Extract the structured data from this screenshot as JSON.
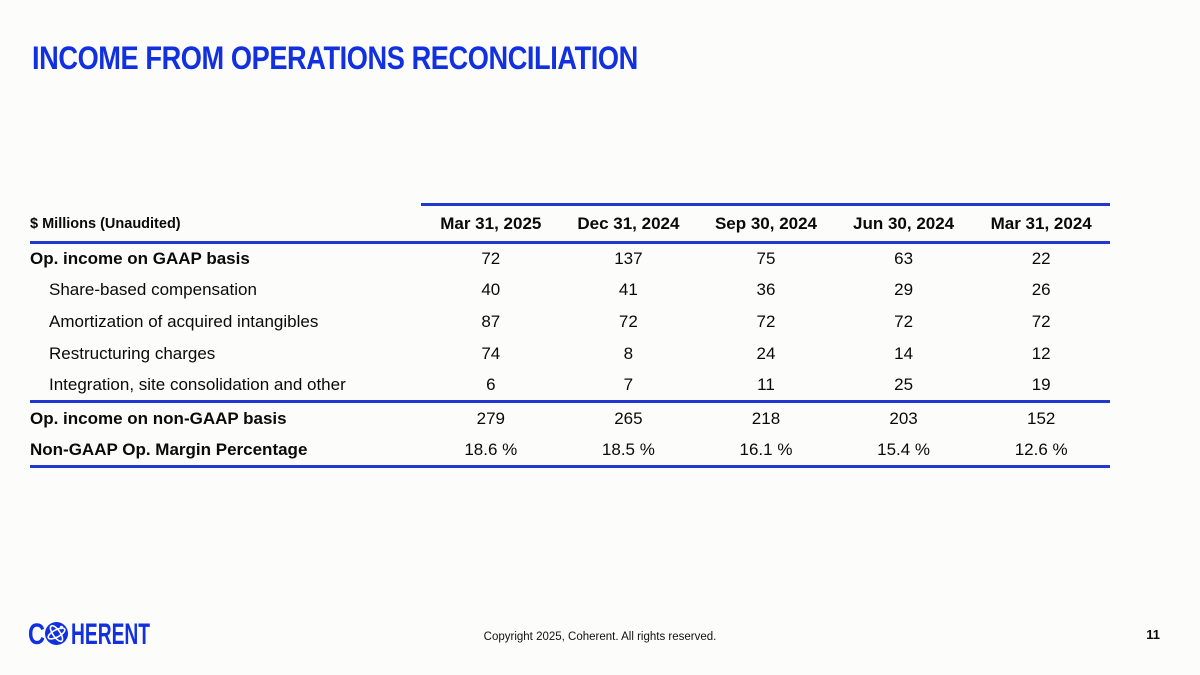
{
  "slide": {
    "title": "INCOME FROM OPERATIONS RECONCILIATION",
    "page_number": "11",
    "footer_copyright": "Copyright 2025, Coherent. All rights reserved.",
    "logo": {
      "text_before_icon": "C",
      "text_after_icon": "HERENT",
      "icon": "globe-orbit-icon"
    }
  },
  "colors": {
    "accent_blue": "#1130e0",
    "rule_blue": "#2138cf",
    "text": "#0a0a0a",
    "background": "#fcfcfa"
  },
  "table": {
    "unit_label": "$ Millions (Unaudited)",
    "columns": [
      "Mar 31, 2025",
      "Dec 31, 2024",
      "Sep 30, 2024",
      "Jun 30, 2024",
      "Mar 31, 2024"
    ],
    "rows": [
      {
        "label": "Op. income on GAAP basis",
        "bold": true,
        "indent": false,
        "values": [
          "72",
          "137",
          "75",
          "63",
          "22"
        ]
      },
      {
        "label": "Share-based compensation",
        "bold": false,
        "indent": true,
        "values": [
          "40",
          "41",
          "36",
          "29",
          "26"
        ]
      },
      {
        "label": "Amortization of acquired intangibles",
        "bold": false,
        "indent": true,
        "values": [
          "87",
          "72",
          "72",
          "72",
          "72"
        ]
      },
      {
        "label": "Restructuring charges",
        "bold": false,
        "indent": true,
        "values": [
          "74",
          "8",
          "24",
          "14",
          "12"
        ]
      },
      {
        "label": "Integration, site consolidation and other",
        "bold": false,
        "indent": true,
        "values": [
          "6",
          "7",
          "11",
          "25",
          "19"
        ]
      }
    ],
    "summary_rows": [
      {
        "label": "Op. income on non-GAAP basis",
        "bold": true,
        "values": [
          "279",
          "265",
          "218",
          "203",
          "152"
        ]
      },
      {
        "label": "Non-GAAP Op. Margin Percentage",
        "bold": true,
        "values": [
          "18.6 %",
          "18.5 %",
          "16.1 %",
          "15.4 %",
          "12.6 %"
        ]
      }
    ]
  }
}
